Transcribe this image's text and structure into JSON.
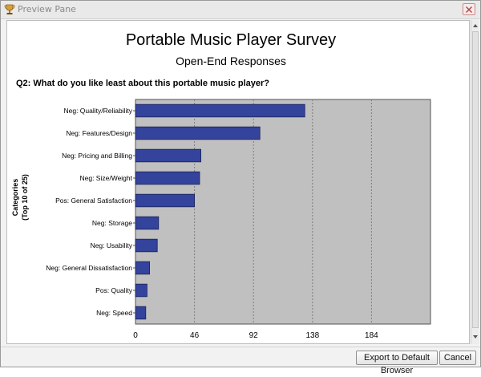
{
  "window": {
    "title": "Preview Pane",
    "icons": {
      "app": "trophy-icon",
      "close": "close-icon"
    }
  },
  "report": {
    "title": "Portable Music Player Survey",
    "subtitle": "Open-End Responses",
    "question": "Q2: What do you like least about this portable music player?"
  },
  "chart_data": {
    "type": "bar",
    "orientation": "horizontal",
    "categories": [
      "Neg: Quality/Reliability",
      "Neg: Features/Design",
      "Neg: Pricing and Billing",
      "Neg: Size/Weight",
      "Pos: General Satisfaction",
      "Neg: Storage",
      "Neg: Usability",
      "Neg: General Dissatisfaction",
      "Pos: Quality",
      "Neg: Speed"
    ],
    "values": [
      132,
      97,
      51,
      50,
      46,
      18,
      17,
      11,
      9,
      8
    ],
    "ylabel": "Categories",
    "ylabel2": "(Top 10 of 25)",
    "xlim": [
      0,
      230
    ],
    "xticks": [
      0,
      46,
      92,
      138,
      184
    ],
    "grid": true,
    "colors": {
      "bar": "#34439b",
      "plot_bg": "#c0c0c0",
      "grid": "#7d7d7d"
    }
  },
  "buttons": {
    "export": "Export to Default Browser",
    "cancel": "Cancel"
  }
}
